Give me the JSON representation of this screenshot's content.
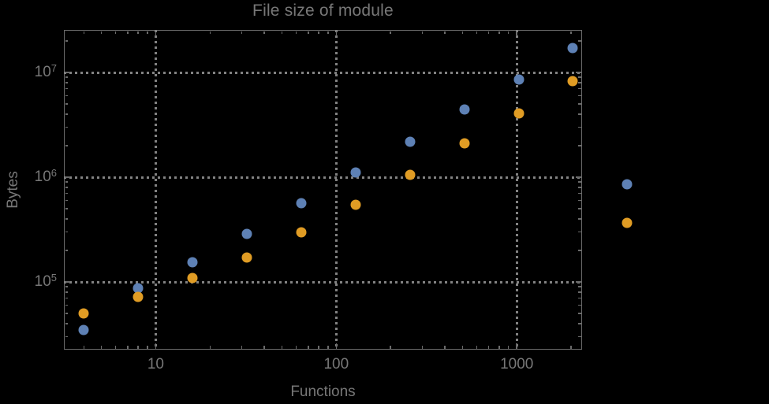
{
  "colors": {
    "background": "#000000",
    "frame": "#6b6b6b",
    "grid": "#828282",
    "text": "#777777",
    "series_blue": "#5E81B5",
    "series_orange": "#E09C24"
  },
  "chart_data": {
    "type": "scatter",
    "title": "File size of module",
    "xlabel": "Functions",
    "ylabel": "Bytes",
    "xscale": "log",
    "yscale": "log",
    "xlim": [
      3.1,
      2300
    ],
    "ylim": [
      22600,
      25500000
    ],
    "grid": "dotted gridlines at decade ticks, frame on all four sides, inward ticks",
    "legend": "none",
    "x": [
      4,
      8,
      16,
      32,
      64,
      128,
      256,
      512,
      1024,
      2048,
      4096
    ],
    "series": [
      {
        "name": "series-blue",
        "color": "#5E81B5",
        "values": [
          35000,
          87000,
          155000,
          290000,
          570000,
          1110000,
          2200000,
          4400000,
          8500000,
          17000000,
          860000
        ]
      },
      {
        "name": "series-orange",
        "color": "#E09C24",
        "values": [
          50000,
          72000,
          109000,
          170000,
          300000,
          550000,
          1060000,
          2100000,
          4100000,
          8300000,
          370000
        ]
      }
    ],
    "x_ticks": {
      "major": [
        10,
        100,
        1000
      ],
      "major_labels": [
        "10",
        "100",
        "1000"
      ]
    },
    "y_ticks": {
      "major": [
        100000,
        1000000,
        10000000
      ],
      "major_labels": [
        {
          "base": "10",
          "exp": "5"
        },
        {
          "base": "10",
          "exp": "6"
        },
        {
          "base": "10",
          "exp": "7"
        }
      ]
    },
    "note_points_outside_frame": "the x=4096 pair is drawn to the right of the plot frame"
  }
}
